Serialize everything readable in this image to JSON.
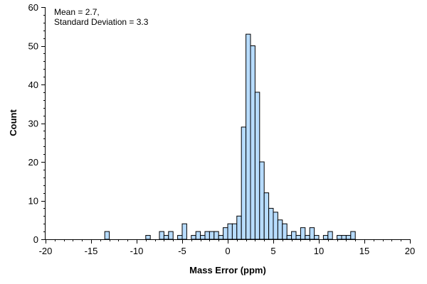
{
  "chart_data": {
    "type": "bar",
    "xlabel": "Mass Error (ppm)",
    "ylabel": "Count",
    "xlim": [
      -20,
      20
    ],
    "ylim": [
      0,
      60
    ],
    "xticks": [
      -20,
      -15,
      -10,
      -5,
      0,
      5,
      10,
      15,
      20
    ],
    "yticks": [
      0,
      10,
      20,
      30,
      40,
      50,
      60
    ],
    "bin_width": 0.5,
    "annotations": [
      "Mean = 2.7,",
      "Standard Deviation = 3.3"
    ],
    "bar_color": "#b7dcff",
    "grid": false,
    "bins": [
      {
        "x": -13.5,
        "count": 2
      },
      {
        "x": -9.0,
        "count": 1
      },
      {
        "x": -7.5,
        "count": 2
      },
      {
        "x": -7.0,
        "count": 1
      },
      {
        "x": -6.5,
        "count": 2
      },
      {
        "x": -5.5,
        "count": 1
      },
      {
        "x": -5.0,
        "count": 4
      },
      {
        "x": -4.0,
        "count": 1
      },
      {
        "x": -3.5,
        "count": 2
      },
      {
        "x": -3.0,
        "count": 1
      },
      {
        "x": -2.5,
        "count": 2
      },
      {
        "x": -2.0,
        "count": 2
      },
      {
        "x": -1.5,
        "count": 2
      },
      {
        "x": -1.0,
        "count": 1
      },
      {
        "x": -0.5,
        "count": 3
      },
      {
        "x": 0.0,
        "count": 4
      },
      {
        "x": 0.5,
        "count": 4
      },
      {
        "x": 1.0,
        "count": 6
      },
      {
        "x": 1.5,
        "count": 29
      },
      {
        "x": 2.0,
        "count": 53
      },
      {
        "x": 2.5,
        "count": 50
      },
      {
        "x": 3.0,
        "count": 38
      },
      {
        "x": 3.5,
        "count": 20
      },
      {
        "x": 4.0,
        "count": 12
      },
      {
        "x": 4.5,
        "count": 8
      },
      {
        "x": 5.0,
        "count": 7
      },
      {
        "x": 5.5,
        "count": 5
      },
      {
        "x": 6.0,
        "count": 4
      },
      {
        "x": 6.5,
        "count": 1
      },
      {
        "x": 7.0,
        "count": 2
      },
      {
        "x": 7.5,
        "count": 1
      },
      {
        "x": 8.0,
        "count": 3
      },
      {
        "x": 8.5,
        "count": 1
      },
      {
        "x": 9.0,
        "count": 3
      },
      {
        "x": 9.5,
        "count": 1
      },
      {
        "x": 10.5,
        "count": 1
      },
      {
        "x": 11.0,
        "count": 2
      },
      {
        "x": 12.0,
        "count": 1
      },
      {
        "x": 12.5,
        "count": 1
      },
      {
        "x": 13.0,
        "count": 1
      },
      {
        "x": 13.5,
        "count": 2
      }
    ]
  }
}
